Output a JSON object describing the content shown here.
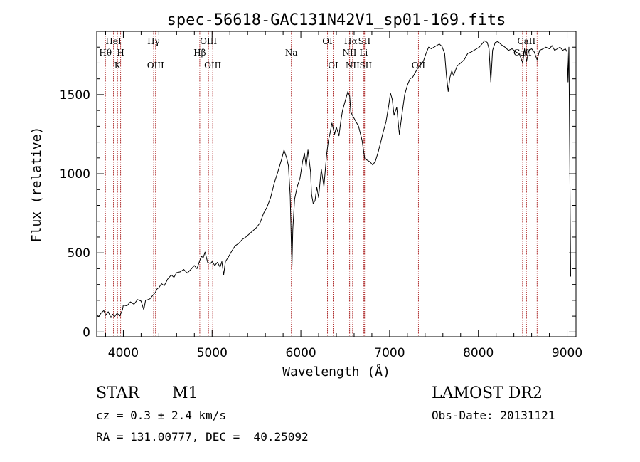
{
  "chart_data": {
    "type": "line",
    "title": "spec-56618-GAC131N42V1_sp01-169.fits",
    "xlabel": "Wavelength (Å)",
    "ylabel": "Flux (relative)",
    "xlim": [
      3700,
      9100
    ],
    "ylim": [
      -30,
      1900
    ],
    "x_ticks": [
      4000,
      5000,
      6000,
      7000,
      8000,
      9000
    ],
    "y_ticks": [
      0,
      500,
      1000,
      1500
    ],
    "grid": false,
    "line_color": "#000000",
    "marker_color": "#b03030",
    "lines": [
      {
        "wavelength": 3798,
        "label": "Hθ",
        "row": 2
      },
      {
        "wavelength": 3889,
        "label": "HeI",
        "row": 1
      },
      {
        "wavelength": 3934,
        "label": "K",
        "row": 3
      },
      {
        "wavelength": 3969,
        "label": "H",
        "row": 2
      },
      {
        "wavelength": 4341,
        "label": "Hγ",
        "row": 1
      },
      {
        "wavelength": 4363,
        "label": "OIII",
        "row": 3
      },
      {
        "wavelength": 4861,
        "label": "Hβ",
        "row": 2
      },
      {
        "wavelength": 4959,
        "label": "OIII",
        "row": 1
      },
      {
        "wavelength": 5007,
        "label": "OIII",
        "row": 3
      },
      {
        "wavelength": 5893,
        "label": "Na",
        "row": 2
      },
      {
        "wavelength": 6300,
        "label": "OI",
        "row": 1
      },
      {
        "wavelength": 6364,
        "label": "OI",
        "row": 3
      },
      {
        "wavelength": 6548,
        "label": "NII",
        "row": 2
      },
      {
        "wavelength": 6563,
        "label": "Hα",
        "row": 1
      },
      {
        "wavelength": 6583,
        "label": "NII",
        "row": 3
      },
      {
        "wavelength": 6707,
        "label": "Li",
        "row": 2
      },
      {
        "wavelength": 6716,
        "label": "SII",
        "row": 1
      },
      {
        "wavelength": 6731,
        "label": "SII",
        "row": 3
      },
      {
        "wavelength": 7325,
        "label": "OII",
        "row": 3
      },
      {
        "wavelength": 8498,
        "label": "CaII",
        "row": 2
      },
      {
        "wavelength": 8542,
        "label": "CaII",
        "row": 1
      },
      {
        "wavelength": 8662,
        "label": "",
        "row": 0
      }
    ],
    "series": [
      {
        "points": [
          [
            3700,
            110
          ],
          [
            3720,
            95
          ],
          [
            3750,
            120
          ],
          [
            3780,
            135
          ],
          [
            3800,
            105
          ],
          [
            3830,
            128
          ],
          [
            3860,
            90
          ],
          [
            3880,
            112
          ],
          [
            3900,
            96
          ],
          [
            3930,
            118
          ],
          [
            3960,
            102
          ],
          [
            3990,
            140
          ],
          [
            4000,
            170
          ],
          [
            4040,
            165
          ],
          [
            4080,
            190
          ],
          [
            4120,
            175
          ],
          [
            4160,
            205
          ],
          [
            4200,
            195
          ],
          [
            4230,
            140
          ],
          [
            4250,
            198
          ],
          [
            4300,
            210
          ],
          [
            4330,
            230
          ],
          [
            4360,
            250
          ],
          [
            4380,
            272
          ],
          [
            4400,
            280
          ],
          [
            4430,
            305
          ],
          [
            4460,
            292
          ],
          [
            4500,
            335
          ],
          [
            4540,
            360
          ],
          [
            4570,
            345
          ],
          [
            4600,
            375
          ],
          [
            4640,
            380
          ],
          [
            4680,
            395
          ],
          [
            4720,
            372
          ],
          [
            4760,
            395
          ],
          [
            4800,
            420
          ],
          [
            4830,
            400
          ],
          [
            4860,
            450
          ],
          [
            4880,
            478
          ],
          [
            4900,
            470
          ],
          [
            4920,
            505
          ],
          [
            4950,
            440
          ],
          [
            4980,
            432
          ],
          [
            5000,
            445
          ],
          [
            5030,
            420
          ],
          [
            5060,
            440
          ],
          [
            5090,
            410
          ],
          [
            5110,
            445
          ],
          [
            5130,
            360
          ],
          [
            5150,
            445
          ],
          [
            5180,
            470
          ],
          [
            5220,
            510
          ],
          [
            5260,
            545
          ],
          [
            5300,
            560
          ],
          [
            5340,
            585
          ],
          [
            5380,
            600
          ],
          [
            5420,
            620
          ],
          [
            5460,
            640
          ],
          [
            5500,
            660
          ],
          [
            5540,
            690
          ],
          [
            5580,
            750
          ],
          [
            5620,
            790
          ],
          [
            5660,
            850
          ],
          [
            5700,
            940
          ],
          [
            5740,
            1010
          ],
          [
            5780,
            1085
          ],
          [
            5810,
            1150
          ],
          [
            5840,
            1100
          ],
          [
            5860,
            1050
          ],
          [
            5880,
            860
          ],
          [
            5893,
            560
          ],
          [
            5900,
            420
          ],
          [
            5910,
            650
          ],
          [
            5930,
            840
          ],
          [
            5960,
            920
          ],
          [
            5990,
            970
          ],
          [
            6020,
            1080
          ],
          [
            6040,
            1130
          ],
          [
            6060,
            1045
          ],
          [
            6080,
            1150
          ],
          [
            6110,
            1010
          ],
          [
            6120,
            870
          ],
          [
            6140,
            810
          ],
          [
            6160,
            830
          ],
          [
            6180,
            915
          ],
          [
            6200,
            850
          ],
          [
            6230,
            1030
          ],
          [
            6260,
            920
          ],
          [
            6290,
            1120
          ],
          [
            6310,
            1210
          ],
          [
            6330,
            1260
          ],
          [
            6350,
            1320
          ],
          [
            6380,
            1250
          ],
          [
            6400,
            1295
          ],
          [
            6430,
            1240
          ],
          [
            6450,
            1330
          ],
          [
            6470,
            1400
          ],
          [
            6490,
            1440
          ],
          [
            6510,
            1480
          ],
          [
            6530,
            1520
          ],
          [
            6550,
            1490
          ],
          [
            6563,
            1390
          ],
          [
            6590,
            1360
          ],
          [
            6620,
            1330
          ],
          [
            6650,
            1300
          ],
          [
            6690,
            1210
          ],
          [
            6720,
            1095
          ],
          [
            6750,
            1085
          ],
          [
            6780,
            1075
          ],
          [
            6810,
            1055
          ],
          [
            6840,
            1080
          ],
          [
            6870,
            1135
          ],
          [
            6900,
            1200
          ],
          [
            6930,
            1270
          ],
          [
            6960,
            1330
          ],
          [
            6990,
            1430
          ],
          [
            7010,
            1510
          ],
          [
            7030,
            1470
          ],
          [
            7050,
            1370
          ],
          [
            7080,
            1420
          ],
          [
            7110,
            1250
          ],
          [
            7140,
            1380
          ],
          [
            7170,
            1500
          ],
          [
            7200,
            1560
          ],
          [
            7230,
            1600
          ],
          [
            7260,
            1610
          ],
          [
            7290,
            1640
          ],
          [
            7320,
            1670
          ],
          [
            7350,
            1690
          ],
          [
            7380,
            1710
          ],
          [
            7410,
            1760
          ],
          [
            7440,
            1800
          ],
          [
            7470,
            1790
          ],
          [
            7500,
            1800
          ],
          [
            7530,
            1810
          ],
          [
            7560,
            1820
          ],
          [
            7590,
            1805
          ],
          [
            7620,
            1760
          ],
          [
            7640,
            1620
          ],
          [
            7660,
            1520
          ],
          [
            7680,
            1610
          ],
          [
            7700,
            1650
          ],
          [
            7720,
            1620
          ],
          [
            7760,
            1680
          ],
          [
            7800,
            1700
          ],
          [
            7840,
            1720
          ],
          [
            7880,
            1760
          ],
          [
            7920,
            1770
          ],
          [
            7950,
            1780
          ],
          [
            7980,
            1790
          ],
          [
            8010,
            1800
          ],
          [
            8040,
            1820
          ],
          [
            8070,
            1840
          ],
          [
            8100,
            1830
          ],
          [
            8120,
            1790
          ],
          [
            8140,
            1580
          ],
          [
            8160,
            1780
          ],
          [
            8190,
            1830
          ],
          [
            8220,
            1835
          ],
          [
            8260,
            1815
          ],
          [
            8300,
            1800
          ],
          [
            8340,
            1780
          ],
          [
            8380,
            1790
          ],
          [
            8420,
            1770
          ],
          [
            8460,
            1760
          ],
          [
            8500,
            1700
          ],
          [
            8520,
            1790
          ],
          [
            8542,
            1710
          ],
          [
            8570,
            1780
          ],
          [
            8600,
            1790
          ],
          [
            8630,
            1770
          ],
          [
            8662,
            1720
          ],
          [
            8690,
            1780
          ],
          [
            8730,
            1790
          ],
          [
            8760,
            1800
          ],
          [
            8800,
            1790
          ],
          [
            8830,
            1810
          ],
          [
            8860,
            1780
          ],
          [
            8890,
            1790
          ],
          [
            8920,
            1800
          ],
          [
            8950,
            1780
          ],
          [
            8980,
            1790
          ],
          [
            9000,
            1770
          ],
          [
            9010,
            1580
          ],
          [
            9020,
            1800
          ],
          [
            9040,
            350
          ]
        ]
      }
    ]
  },
  "footer": {
    "object_class": "STAR",
    "subclass": "M1",
    "survey": "LAMOST DR2",
    "redshift": "cz = 0.3 ± 2.4 km/s",
    "obs_date": "Obs-Date: 20131121",
    "coords": "RA = 131.00777, DEC =  40.25092"
  }
}
